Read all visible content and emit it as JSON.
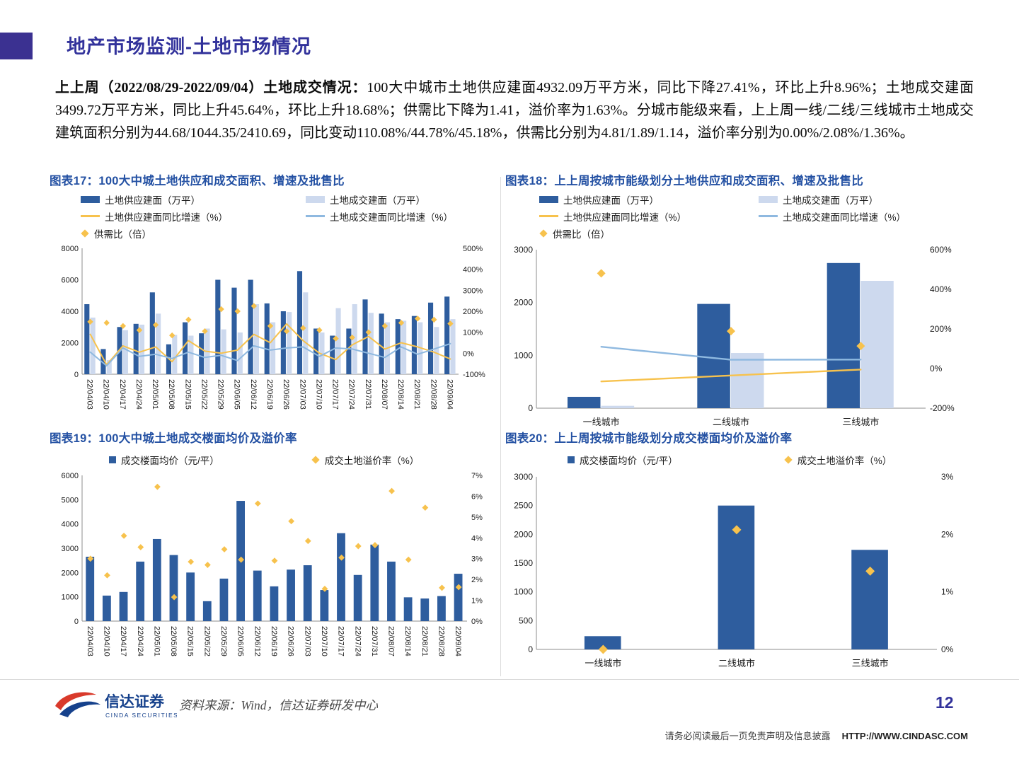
{
  "header": {
    "title": "地产市场监测-土地市场情况"
  },
  "paragraph": {
    "lead": "上上周（2022/08/29-2022/09/04）土地成交情况：",
    "body": "100大中城市土地供应建面4932.09万平方米，同比下降27.41%，环比上升8.96%；土地成交建面3499.72万平方米，同比上升45.64%，环比上升18.68%；供需比下降为1.41，溢价率为1.63%。分城市能级来看，上上周一线/二线/三线城市土地成交建筑面积分别为44.68/1044.35/2410.69，同比变动110.08%/44.78%/45.18%，供需比分别为4.81/1.89/1.14，溢价率分别为0.00%/2.08%/1.36%。"
  },
  "chart_data": [
    {
      "id": "fig17",
      "type": "combo",
      "title": "图表17：100大中城土地供应和成交面积、增速及批售比",
      "categories": [
        "22/04/03",
        "22/04/10",
        "22/04/17",
        "22/04/24",
        "22/05/01",
        "22/05/08",
        "22/05/15",
        "22/05/22",
        "22/05/29",
        "22/06/05",
        "22/06/12",
        "22/06/19",
        "22/06/26",
        "22/07/03",
        "22/07/10",
        "22/07/17",
        "22/07/24",
        "22/07/31",
        "22/08/07",
        "22/08/14",
        "22/08/21",
        "22/08/28",
        "22/09/04"
      ],
      "left_axis": {
        "min": 0,
        "max": 8000,
        "ticks": [
          0,
          2000,
          4000,
          6000,
          8000
        ],
        "suffix": ""
      },
      "right_axis": {
        "min": -100,
        "max": 500,
        "ticks": [
          -100,
          0,
          100,
          200,
          300,
          400,
          500
        ],
        "suffix": "%"
      },
      "series": [
        {
          "name": "土地供应建面（万平）",
          "kind": "bar",
          "axis": "left",
          "color": "barDark",
          "values": [
            4450,
            1600,
            3000,
            3200,
            5200,
            1900,
            3300,
            2600,
            6000,
            5500,
            6000,
            4500,
            4000,
            6550,
            2900,
            2450,
            2900,
            4750,
            3850,
            3500,
            3700,
            4550,
            4932
          ]
        },
        {
          "name": "土地成交建面（万平）",
          "kind": "bar",
          "axis": "left",
          "color": "barLight",
          "values": [
            3600,
            900,
            2800,
            3150,
            3850,
            2500,
            2450,
            2900,
            2850,
            2650,
            4450,
            3300,
            3950,
            5200,
            2650,
            4200,
            4450,
            3900,
            3300,
            3400,
            3300,
            3000,
            3500
          ]
        },
        {
          "name": "土地供应建面同比增速（%）",
          "kind": "line",
          "axis": "right",
          "color": "yellow",
          "values": [
            90,
            -55,
            35,
            5,
            30,
            -40,
            60,
            10,
            0,
            15,
            90,
            50,
            140,
            60,
            0,
            -30,
            40,
            80,
            20,
            50,
            30,
            5,
            -27.41
          ]
        },
        {
          "name": "土地成交建面同比增速（%）",
          "kind": "line",
          "axis": "right",
          "color": "blue",
          "values": [
            5,
            -60,
            25,
            -15,
            -5,
            -25,
            5,
            -20,
            -10,
            -35,
            35,
            15,
            25,
            30,
            -15,
            25,
            20,
            0,
            -20,
            30,
            -5,
            20,
            45.64
          ]
        },
        {
          "name": "供需比（倍）",
          "kind": "diamond",
          "axis": "right",
          "scale": 100,
          "color": "yellow",
          "values": [
            1.5,
            1.45,
            1.3,
            1.1,
            1.35,
            0.85,
            1.6,
            1.05,
            2.1,
            2.0,
            2.25,
            1.3,
            1.05,
            1.2,
            1.1,
            0.7,
            0.75,
            1.0,
            1.3,
            1.45,
            1.65,
            1.6,
            1.41
          ]
        }
      ]
    },
    {
      "id": "fig18",
      "type": "combo",
      "title": "图表18：上上周按城市能级划分土地供应和成交面积、增速及批售比",
      "categories": [
        "一线城市",
        "二线城市",
        "三线城市"
      ],
      "left_axis": {
        "min": 0,
        "max": 3000,
        "ticks": [
          0,
          1000,
          2000,
          3000
        ],
        "suffix": ""
      },
      "right_axis": {
        "min": -200,
        "max": 600,
        "ticks": [
          -200,
          0,
          200,
          400,
          600
        ],
        "suffix": "%"
      },
      "series": [
        {
          "name": "土地供应建面（万平）",
          "kind": "bar",
          "axis": "left",
          "color": "barDark",
          "values": [
            215,
            1974,
            2748
          ]
        },
        {
          "name": "土地成交建面（万平）",
          "kind": "bar",
          "axis": "left",
          "color": "barLight",
          "values": [
            44.68,
            1044.35,
            2410.69
          ]
        },
        {
          "name": "土地供应建面同比增速（%）",
          "kind": "line",
          "axis": "right",
          "color": "yellow",
          "values": [
            -65,
            -35,
            -5
          ]
        },
        {
          "name": "土地成交建面同比增速（%）",
          "kind": "line",
          "axis": "right",
          "color": "blue",
          "values": [
            110.08,
            44.78,
            45.18
          ]
        },
        {
          "name": "供需比（倍）",
          "kind": "diamond",
          "axis": "right",
          "scale": 100,
          "color": "yellow",
          "values": [
            4.81,
            1.89,
            1.14
          ]
        }
      ]
    },
    {
      "id": "fig19",
      "type": "combo",
      "title": "图表19：100大中城土地成交楼面均价及溢价率",
      "categories": [
        "22/04/03",
        "22/04/10",
        "22/04/17",
        "22/04/24",
        "22/05/01",
        "22/05/08",
        "22/05/15",
        "22/05/22",
        "22/05/29",
        "22/06/05",
        "22/06/12",
        "22/06/19",
        "22/06/26",
        "22/07/03",
        "22/07/10",
        "22/07/17",
        "22/07/24",
        "22/07/31",
        "22/08/07",
        "22/08/14",
        "22/08/21",
        "22/08/28",
        "22/09/04"
      ],
      "left_axis": {
        "min": 0,
        "max": 6000,
        "ticks": [
          0,
          1000,
          2000,
          3000,
          4000,
          5000,
          6000
        ],
        "suffix": ""
      },
      "right_axis": {
        "min": 0,
        "max": 7,
        "ticks": [
          0,
          1,
          2,
          3,
          4,
          5,
          6,
          7
        ],
        "suffix": "%"
      },
      "series": [
        {
          "name": "成交楼面均价（元/平）",
          "kind": "bar",
          "axis": "left",
          "color": "barDark",
          "values": [
            2650,
            1050,
            1200,
            2450,
            3380,
            2720,
            2000,
            820,
            1750,
            4950,
            2080,
            1430,
            2120,
            2300,
            1280,
            3620,
            1900,
            3150,
            2450,
            980,
            930,
            1030,
            1950
          ]
        },
        {
          "name": "成交土地溢价率（%）",
          "kind": "diamond",
          "axis": "right",
          "scale": 1,
          "color": "yellow",
          "values": [
            3.0,
            2.2,
            4.1,
            3.55,
            6.45,
            1.15,
            2.85,
            2.7,
            3.45,
            2.95,
            5.65,
            2.9,
            4.8,
            3.85,
            1.55,
            3.05,
            3.6,
            3.65,
            6.25,
            2.95,
            5.45,
            1.6,
            1.63
          ]
        }
      ]
    },
    {
      "id": "fig20",
      "type": "combo",
      "title": "图表20：上上周按城市能级划分成交楼面均价及溢价率",
      "categories": [
        "一线城市",
        "二线城市",
        "三线城市"
      ],
      "left_axis": {
        "min": 0,
        "max": 3000,
        "ticks": [
          0,
          500,
          1000,
          1500,
          2000,
          2500,
          3000
        ],
        "suffix": ""
      },
      "right_axis": {
        "min": 0,
        "max": 3,
        "ticks": [
          0,
          1,
          2,
          3
        ],
        "suffix": "%"
      },
      "series": [
        {
          "name": "成交楼面均价（元/平）",
          "kind": "bar",
          "axis": "left",
          "color": "barDark",
          "values": [
            230,
            2500,
            1730
          ]
        },
        {
          "name": "成交土地溢价率（%）",
          "kind": "diamond",
          "axis": "right",
          "scale": 1,
          "color": "yellow",
          "values": [
            0.0,
            2.08,
            1.36
          ]
        }
      ]
    }
  ],
  "footer": {
    "logo_cn": "信达证券",
    "logo_en": "CINDA SECURITIES",
    "source": "资料来源：Wind，信达证券研发中心",
    "page_number": "12",
    "disclaimer": "请务必阅读最后一页免责声明及信息披露",
    "url": "HTTP://WWW.CINDASC.COM"
  },
  "theme": {
    "indigo": "#32329B",
    "accentSquare": "#3B3191",
    "chartTitle": "#2451A3",
    "barDark": "#2E5D9E",
    "barLight": "#CDD9EE",
    "yellow": "#F7C24D",
    "blue": "#8FB9E0",
    "logoRed": "#D93A2B",
    "logoBlue": "#16418C"
  }
}
